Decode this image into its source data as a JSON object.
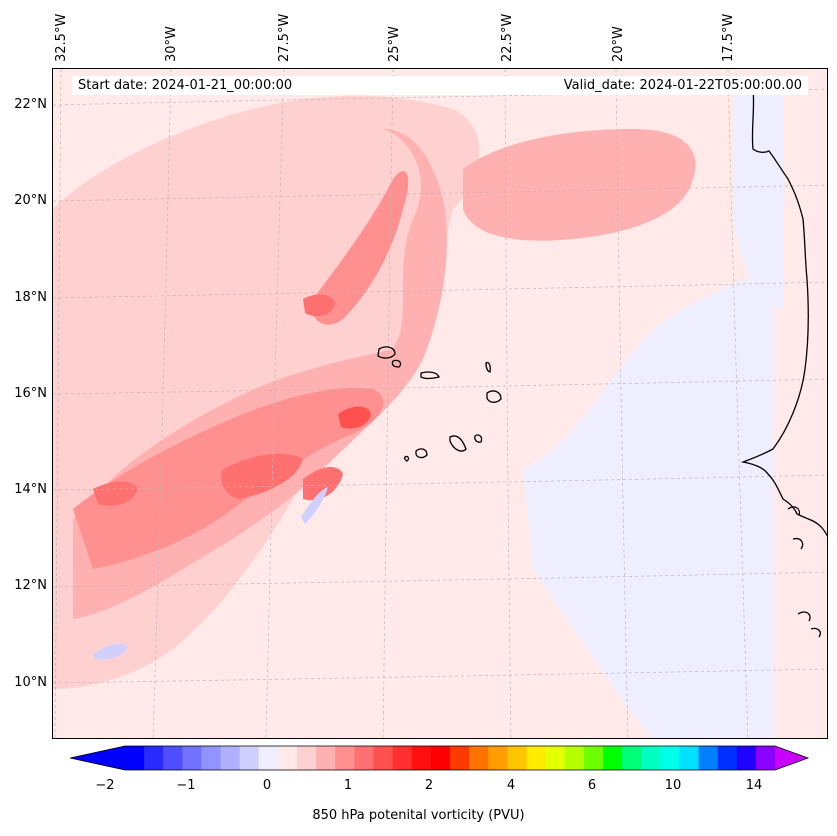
{
  "header": {
    "start_date": "Start date: 2024-01-21_00:00:00",
    "valid_date": "Valid_date: 2024-01-22T05:00:00.00"
  },
  "axes": {
    "lon_labels": [
      "32.5°W",
      "30°W",
      "27.5°W",
      "25°W",
      "22.5°W",
      "20°W",
      "17.5°W"
    ],
    "lat_labels": [
      "22°N",
      "20°N",
      "18°N",
      "16°N",
      "14°N",
      "12°N",
      "10°N"
    ],
    "gridlines": true
  },
  "colorbar": {
    "title": "850 hPa potenital vorticity (PVU)",
    "tick_labels": [
      "−2",
      "−1",
      "0",
      "1",
      "2",
      "4",
      "6",
      "10",
      "14"
    ],
    "colors": [
      "#0000ff",
      "#2a2aff",
      "#4f4fff",
      "#7272ff",
      "#9393ff",
      "#b0b0ff",
      "#d0d0ff",
      "#eeeeff",
      "#ffe9e9",
      "#ffd0d0",
      "#ffb0b0",
      "#ff9090",
      "#ff7070",
      "#ff5050",
      "#ff3030",
      "#ff1010",
      "#ff0000",
      "#ff3a00",
      "#ff7400",
      "#ff9e00",
      "#ffc400",
      "#ffeb00",
      "#e4ff00",
      "#b4ff00",
      "#6eff00",
      "#00ff00",
      "#00ff78",
      "#00ffc0",
      "#00ffe8",
      "#00e0ff",
      "#0080ff",
      "#0030ff",
      "#2000ff",
      "#8c00ff"
    ],
    "extend_low_color": "#0000ff",
    "extend_high_color": "#c800ff"
  },
  "map": {
    "ocean_background": "#ffe9e9",
    "coastline_color": "#000000"
  }
}
